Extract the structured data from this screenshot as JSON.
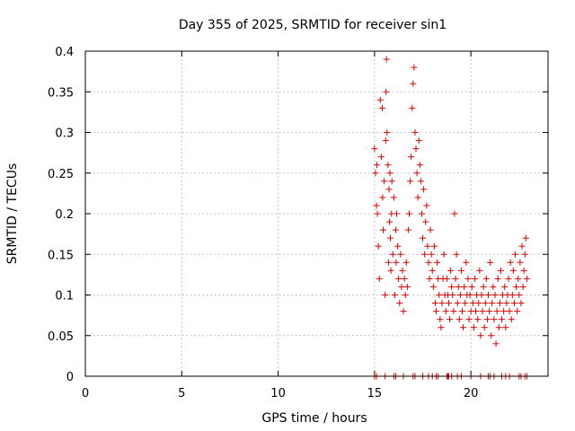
{
  "chart_data": {
    "type": "scatter",
    "title": "Day 355 of 2025, SRMTID for receiver sin1",
    "xlabel": "GPS time / hours",
    "ylabel": "SRMTID / TECUs",
    "xlim": [
      0,
      24
    ],
    "ylim": [
      0,
      0.4
    ],
    "xticks": [
      0,
      5,
      10,
      15,
      20
    ],
    "xtick_labels": [
      "0",
      "5",
      "10",
      "15",
      "20"
    ],
    "yticks": [
      0,
      0.05,
      0.1,
      0.15,
      0.2,
      0.25,
      0.3,
      0.35,
      0.4
    ],
    "ytick_labels": [
      "0",
      "0.05",
      "0.1",
      "0.15",
      "0.2",
      "0.25",
      "0.3",
      "0.35",
      "0.4"
    ],
    "grid": true,
    "marker": "plus",
    "color": "#e00000",
    "series": [
      {
        "x": [
          15.0,
          15.05,
          15.1,
          15.12,
          15.15,
          15.2,
          15.25,
          15.3,
          15.35,
          15.4,
          15.42,
          15.45,
          15.5,
          15.55,
          15.58,
          15.6,
          15.62,
          15.65,
          15.7,
          15.72,
          15.75,
          15.78,
          15.8,
          15.82,
          15.85,
          15.88,
          15.9,
          15.95,
          16.0,
          16.05,
          16.1,
          16.12,
          16.15,
          16.2,
          16.25,
          16.3,
          16.35,
          16.4,
          16.45,
          16.5,
          16.55,
          16.6,
          16.65,
          16.7,
          16.75,
          16.8,
          16.85,
          16.9,
          16.95,
          17.0,
          17.05,
          17.1,
          17.15,
          17.2,
          17.25,
          17.3,
          17.35,
          17.4,
          17.45,
          17.5,
          17.55,
          17.6,
          17.65,
          17.7,
          17.75,
          17.8,
          17.85,
          17.9,
          17.95,
          18.0,
          18.05,
          18.1,
          18.15,
          18.2,
          18.25,
          18.3,
          18.35,
          18.4,
          18.45,
          18.5,
          18.55,
          18.6,
          18.65,
          18.7,
          18.75,
          18.8,
          18.85,
          18.9,
          18.95,
          19.0,
          19.05,
          19.1,
          19.15,
          19.2,
          19.25,
          19.3,
          19.35,
          19.4,
          19.45,
          19.5,
          19.55,
          19.6,
          19.65,
          19.7,
          19.75,
          19.8,
          19.85,
          19.9,
          19.95,
          20.0,
          20.05,
          20.1,
          20.15,
          20.2,
          20.25,
          20.3,
          20.35,
          20.4,
          20.45,
          20.5,
          20.55,
          20.6,
          20.65,
          20.7,
          20.75,
          20.8,
          20.85,
          20.9,
          20.95,
          21.0,
          21.05,
          21.1,
          21.15,
          21.2,
          21.25,
          21.3,
          21.35,
          21.4,
          21.45,
          21.5,
          21.55,
          21.6,
          21.65,
          21.7,
          21.75,
          21.8,
          21.85,
          21.9,
          21.95,
          22.0,
          22.05,
          22.1,
          22.15,
          22.2,
          22.25,
          22.3,
          22.35,
          22.4,
          22.45,
          22.5,
          22.55,
          22.6,
          22.65,
          22.7,
          22.75,
          22.8,
          22.85,
          22.9
        ],
        "y": [
          0.28,
          0.25,
          0.21,
          0.26,
          0.2,
          0.16,
          0.12,
          0.34,
          0.27,
          0.33,
          0.22,
          0.18,
          0.24,
          0.1,
          0.29,
          0.35,
          0.39,
          0.3,
          0.26,
          0.14,
          0.23,
          0.19,
          0.25,
          0.17,
          0.13,
          0.2,
          0.24,
          0.15,
          0.22,
          0.1,
          0.18,
          0.14,
          0.2,
          0.16,
          0.12,
          0.09,
          0.15,
          0.11,
          0.13,
          0.08,
          0.12,
          0.1,
          0.14,
          0.11,
          0.18,
          0.2,
          0.24,
          0.27,
          0.33,
          0.36,
          0.38,
          0.3,
          0.28,
          0.25,
          0.22,
          0.29,
          0.26,
          0.24,
          0.2,
          0.17,
          0.23,
          0.15,
          0.19,
          0.21,
          0.16,
          0.14,
          0.12,
          0.18,
          0.15,
          0.13,
          0.11,
          0.16,
          0.09,
          0.08,
          0.14,
          0.12,
          0.1,
          0.07,
          0.06,
          0.09,
          0.12,
          0.15,
          0.1,
          0.08,
          0.12,
          0.1,
          0.09,
          0.07,
          0.13,
          0.11,
          0.1,
          0.08,
          0.2,
          0.12,
          0.15,
          0.09,
          0.11,
          0.07,
          0.1,
          0.13,
          0.08,
          0.06,
          0.11,
          0.09,
          0.14,
          0.1,
          0.12,
          0.07,
          0.1,
          0.08,
          0.11,
          0.09,
          0.06,
          0.12,
          0.08,
          0.1,
          0.07,
          0.09,
          0.13,
          0.05,
          0.1,
          0.08,
          0.11,
          0.06,
          0.09,
          0.12,
          0.07,
          0.1,
          0.08,
          0.14,
          0.05,
          0.09,
          0.11,
          0.07,
          0.1,
          0.04,
          0.08,
          0.12,
          0.06,
          0.09,
          0.13,
          0.07,
          0.1,
          0.08,
          0.11,
          0.06,
          0.09,
          0.1,
          0.12,
          0.08,
          0.14,
          0.07,
          0.1,
          0.13,
          0.09,
          0.15,
          0.11,
          0.08,
          0.12,
          0.1,
          0.14,
          0.09,
          0.16,
          0.11,
          0.13,
          0.15,
          0.17,
          0.12
        ]
      },
      {
        "x": [
          15.0,
          15.1,
          15.55,
          16.0,
          16.1,
          16.5,
          17.0,
          17.1,
          17.5,
          17.8,
          18.0,
          18.2,
          18.3,
          18.75,
          18.8,
          18.85,
          19.0,
          19.3,
          19.5,
          20.0,
          20.5,
          20.9,
          21.0,
          21.2,
          21.6,
          21.8,
          22.0,
          22.5,
          22.6,
          22.8,
          22.9
        ],
        "y": [
          0,
          0,
          0,
          0,
          0,
          0,
          0,
          0,
          0,
          0,
          0,
          0,
          0,
          0,
          0,
          0,
          0,
          0,
          0,
          0,
          0,
          0,
          0,
          0,
          0,
          0,
          0,
          0,
          0,
          0,
          0
        ]
      }
    ]
  }
}
